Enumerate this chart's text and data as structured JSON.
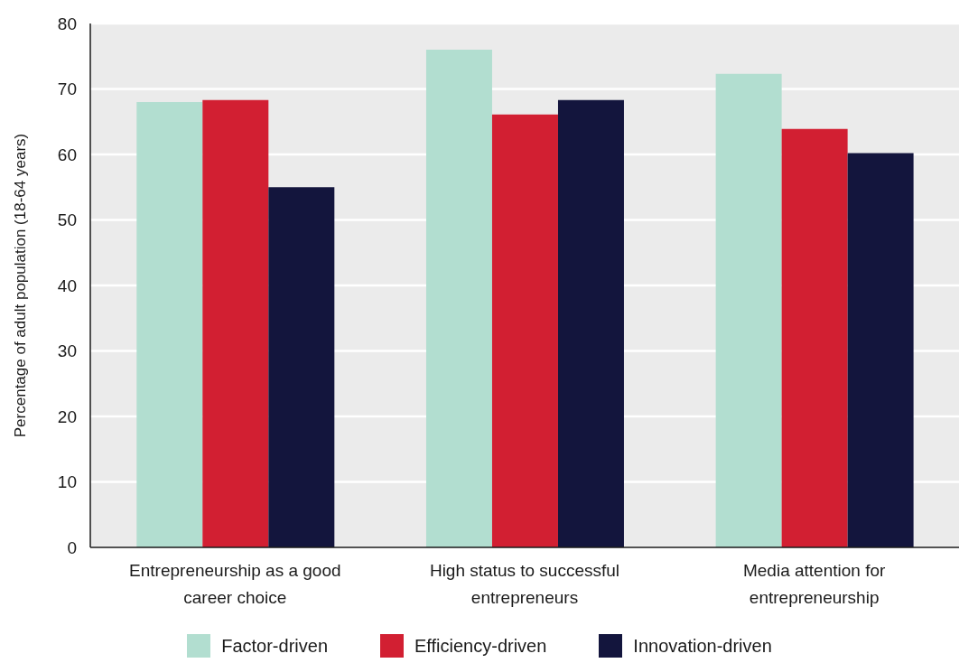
{
  "chart_data": {
    "type": "bar",
    "ylabel": "Percentage of adult population (18-64 years)",
    "categories": [
      "Entrepreneurship as a good career choice",
      "High status to successful entrepreneurs",
      "Media attention for entrepreneurship"
    ],
    "series": [
      {
        "name": "Factor-driven",
        "color": "#b2ded0",
        "values": [
          68,
          76,
          72.3
        ]
      },
      {
        "name": "Efficiency-driven",
        "color": "#d21f32",
        "values": [
          68.3,
          66.1,
          63.9
        ]
      },
      {
        "name": "Innovation-driven",
        "color": "#13153d",
        "values": [
          55,
          68.3,
          60.2
        ]
      }
    ],
    "ylim": [
      0,
      80
    ],
    "yticks": [
      0,
      10,
      20,
      30,
      40,
      50,
      60,
      70,
      80
    ],
    "grid": "y",
    "legend": "bottom"
  }
}
